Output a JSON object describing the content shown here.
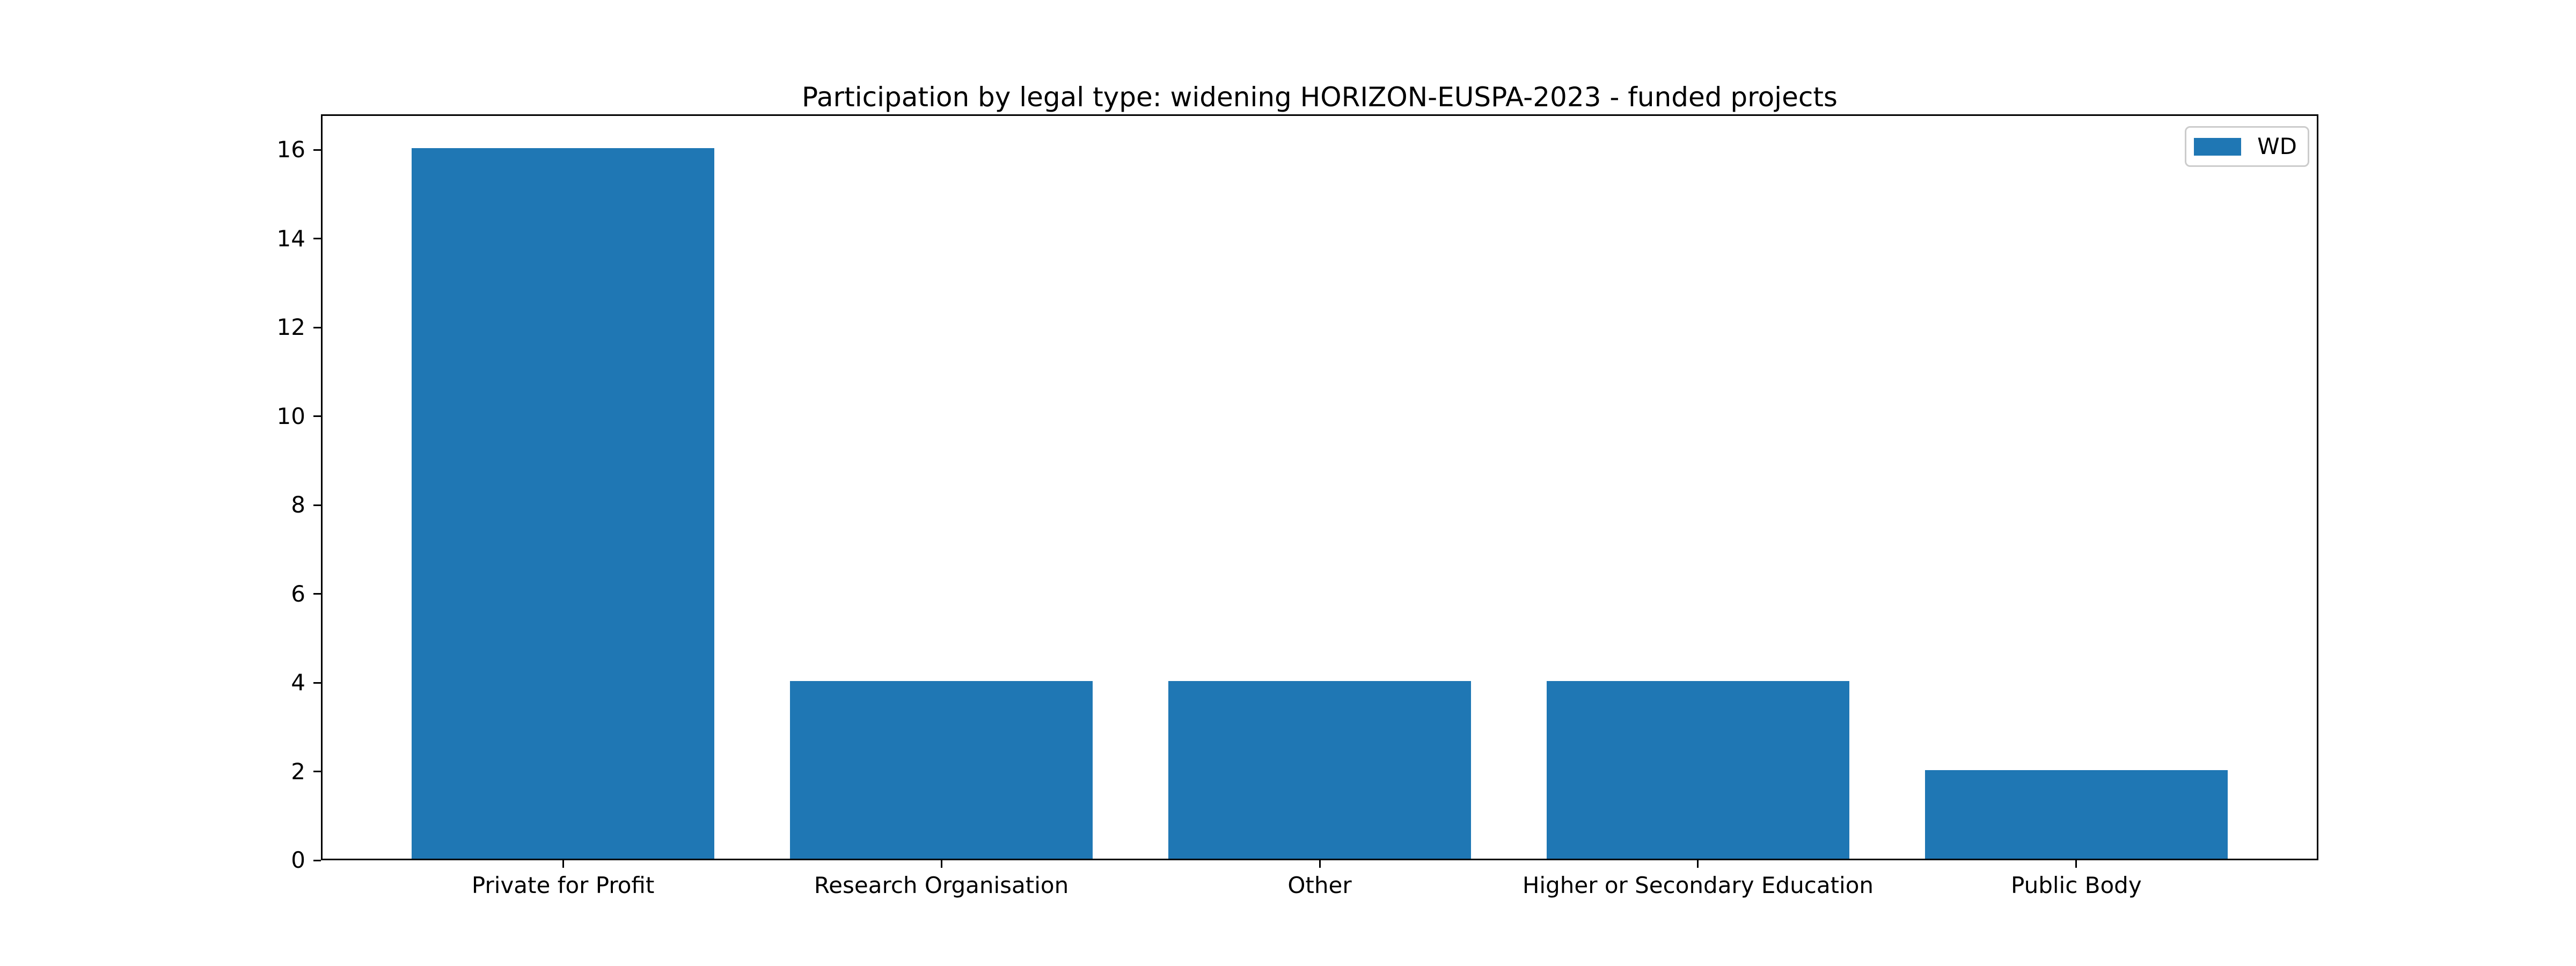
{
  "chart_data": {
    "type": "bar",
    "title": "Participation by legal type: widening HORIZON-EUSPA-2023 - funded projects",
    "categories": [
      "Private for Profit",
      "Research Organisation",
      "Other",
      "Higher or Secondary Education",
      "Public Body"
    ],
    "series": [
      {
        "name": "WD",
        "color": "#1f77b4",
        "values": [
          16,
          4,
          4,
          4,
          2
        ]
      }
    ],
    "xlabel": "",
    "ylabel": "",
    "ylim": [
      0,
      16.8
    ],
    "yticks": [
      0,
      2,
      4,
      6,
      8,
      10,
      12,
      14,
      16
    ],
    "bar_width_fraction": 0.8,
    "grid": false,
    "legend": {
      "position": "upper right",
      "entries": [
        "WD"
      ]
    },
    "colors": {
      "bar": "#1f77b4",
      "spine": "#000000",
      "tick": "#000000",
      "text": "#000000",
      "legend_border": "#cccccc",
      "background": "#ffffff"
    }
  }
}
